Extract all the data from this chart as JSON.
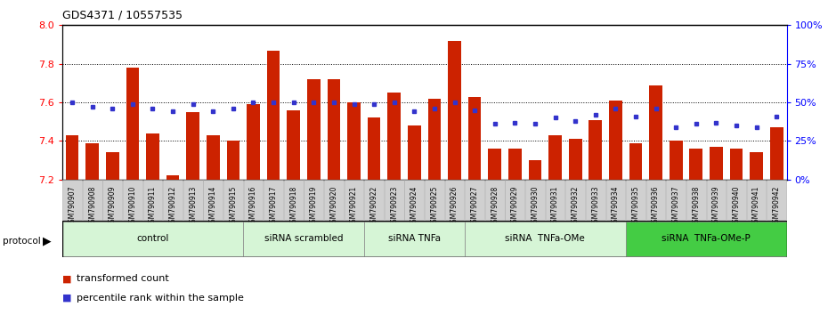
{
  "title": "GDS4371 / 10557535",
  "ylim_left": [
    7.2,
    8.0
  ],
  "ylim_right": [
    0,
    100
  ],
  "yticks_left": [
    7.2,
    7.4,
    7.6,
    7.8,
    8.0
  ],
  "yticks_right": [
    0,
    25,
    50,
    75,
    100
  ],
  "bar_color": "#cc2200",
  "dot_color": "#3333cc",
  "samples": [
    "GSM790907",
    "GSM790908",
    "GSM790909",
    "GSM790910",
    "GSM790911",
    "GSM790912",
    "GSM790913",
    "GSM790914",
    "GSM790915",
    "GSM790916",
    "GSM790917",
    "GSM790918",
    "GSM790919",
    "GSM790920",
    "GSM790921",
    "GSM790922",
    "GSM790923",
    "GSM790924",
    "GSM790925",
    "GSM790926",
    "GSM790927",
    "GSM790928",
    "GSM790929",
    "GSM790930",
    "GSM790931",
    "GSM790932",
    "GSM790933",
    "GSM790934",
    "GSM790935",
    "GSM790936",
    "GSM790937",
    "GSM790938",
    "GSM790939",
    "GSM790940",
    "GSM790941",
    "GSM790942"
  ],
  "bar_values": [
    7.43,
    7.39,
    7.34,
    7.78,
    7.44,
    7.22,
    7.55,
    7.43,
    7.4,
    7.59,
    7.87,
    7.56,
    7.72,
    7.72,
    7.6,
    7.52,
    7.65,
    7.48,
    7.62,
    7.92,
    7.63,
    7.36,
    7.36,
    7.3,
    7.43,
    7.41,
    7.51,
    7.61,
    7.39,
    7.69,
    7.4,
    7.36,
    7.37,
    7.36,
    7.34,
    7.47
  ],
  "dot_values": [
    50,
    47,
    46,
    49,
    46,
    44,
    49,
    44,
    46,
    50,
    50,
    50,
    50,
    50,
    49,
    49,
    50,
    44,
    46,
    50,
    45,
    36,
    37,
    36,
    40,
    38,
    42,
    46,
    41,
    46,
    34,
    36,
    37,
    35,
    34,
    41
  ],
  "groups": [
    {
      "label": "control",
      "start": 0,
      "end": 9,
      "color": "#d6f5d6"
    },
    {
      "label": "siRNA scrambled",
      "start": 9,
      "end": 15,
      "color": "#d6f5d6"
    },
    {
      "label": "siRNA TNFa",
      "start": 15,
      "end": 20,
      "color": "#d6f5d6"
    },
    {
      "label": "siRNA  TNFa-OMe",
      "start": 20,
      "end": 28,
      "color": "#d6f5d6"
    },
    {
      "label": "siRNA  TNFa-OMe-P",
      "start": 28,
      "end": 36,
      "color": "#44cc44"
    }
  ],
  "tick_bg": "#d0d0d0",
  "legend_red": "transformed count",
  "legend_blue": "percentile rank within the sample"
}
